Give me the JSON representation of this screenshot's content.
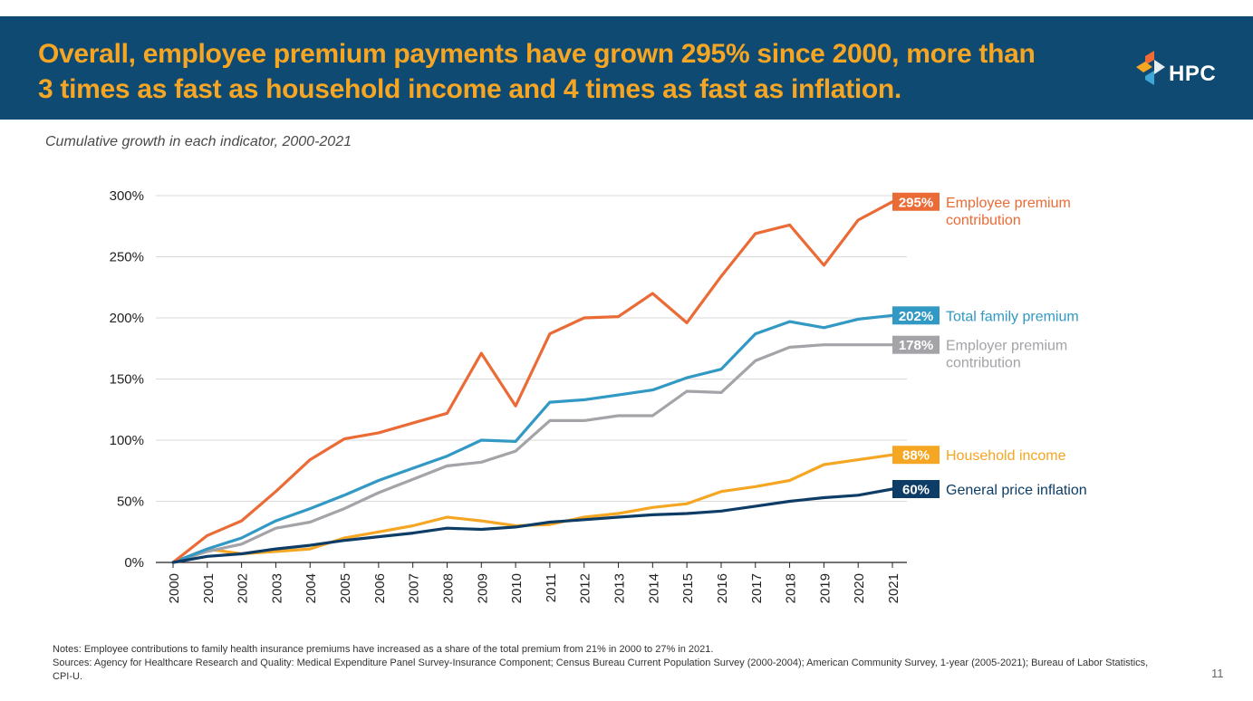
{
  "header": {
    "title": "Overall, employee premium payments have grown 295% since 2000, more than 3 times as fast as household income and 4 times as fast as inflation.",
    "logo_text": "HPC",
    "logo_icon": "hpc-logo-icon"
  },
  "subtitle": "Cumulative growth in each indicator, 2000-2021",
  "chart_data": {
    "type": "line",
    "title": "Cumulative growth in each indicator, 2000-2021",
    "xlabel": "",
    "ylabel": "",
    "x": [
      "2000",
      "2001",
      "2002",
      "2003",
      "2004",
      "2005",
      "2006",
      "2007",
      "2008",
      "2009",
      "2010",
      "2011",
      "2012",
      "2013",
      "2014",
      "2015",
      "2016",
      "2017",
      "2018",
      "2019",
      "2020",
      "2021"
    ],
    "ylim": [
      0,
      300
    ],
    "yticks": [
      0,
      50,
      100,
      150,
      200,
      250,
      300
    ],
    "ytick_labels": [
      "0%",
      "50%",
      "100%",
      "150%",
      "200%",
      "250%",
      "300%"
    ],
    "grid": "horizontal",
    "series": [
      {
        "name": "Household income",
        "label_lines": [
          "Household income"
        ],
        "end_label": "88%",
        "color": "#f5a623",
        "values": [
          0,
          11,
          7,
          9,
          11,
          20,
          25,
          30,
          37,
          34,
          30,
          31,
          37,
          40,
          45,
          48,
          58,
          62,
          67,
          80,
          84,
          88
        ]
      },
      {
        "name": "Employer premium contribution",
        "label_lines": [
          "Employer premium",
          "contribution"
        ],
        "end_label": "178%",
        "color": "#a3a3a8",
        "values": [
          0,
          9,
          15,
          28,
          33,
          44,
          57,
          68,
          79,
          82,
          91,
          116,
          116,
          120,
          120,
          140,
          139,
          165,
          176,
          178,
          178,
          178
        ]
      },
      {
        "name": "Total family premium",
        "label_lines": [
          "Total family premium"
        ],
        "end_label": "202%",
        "color": "#3298c4",
        "values": [
          0,
          11,
          20,
          34,
          44,
          55,
          67,
          77,
          87,
          100,
          99,
          131,
          133,
          137,
          141,
          151,
          158,
          187,
          197,
          192,
          199,
          202
        ]
      },
      {
        "name": "Employee premium contribution",
        "label_lines": [
          "Employee premium",
          "contribution"
        ],
        "end_label": "295%",
        "color": "#eb6b36",
        "values": [
          0,
          22,
          34,
          58,
          84,
          101,
          106,
          114,
          122,
          171,
          128,
          187,
          200,
          201,
          220,
          196,
          234,
          269,
          276,
          243,
          280,
          295
        ]
      },
      {
        "name": "General price inflation",
        "label_lines": [
          "General price inflation"
        ],
        "end_label": "60%",
        "color": "#0d3d66",
        "values": [
          0,
          5,
          7,
          11,
          14,
          18,
          21,
          24,
          28,
          27,
          29,
          33,
          35,
          37,
          39,
          40,
          42,
          46,
          50,
          53,
          55,
          60
        ]
      }
    ]
  },
  "notes": {
    "line1": "Notes: Employee contributions to family health insurance premiums have increased as a share of the total premium from 21% in 2000 to 27% in 2021.",
    "line2": "Sources: Agency for Healthcare Research and Quality: Medical Expenditure Panel Survey-Insurance Component; Census Bureau Current Population Survey (2000-2004); American Community Survey, 1-year (2005-2021); Bureau of Labor Statistics, CPI-U."
  },
  "page_number": "11"
}
